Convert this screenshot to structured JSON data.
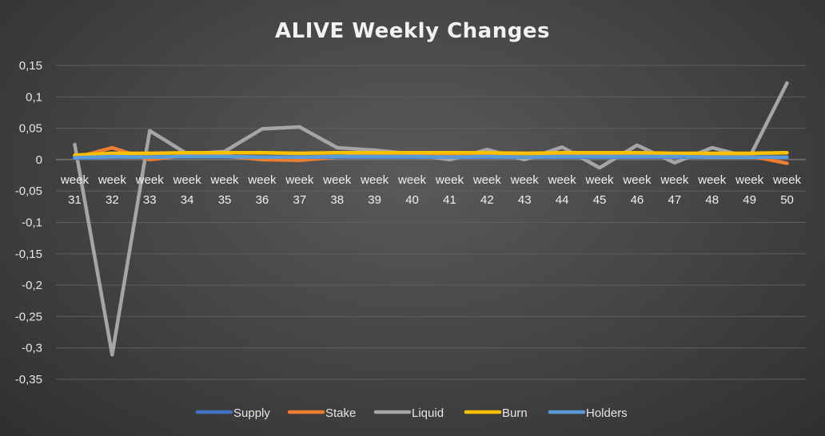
{
  "chart_data": {
    "type": "line",
    "title": "ALIVE Weekly Changes",
    "xlabel": "",
    "ylabel": "",
    "ylim": [
      -0.35,
      0.15
    ],
    "yticks": [
      "0,15",
      "0,1",
      "0,05",
      "0",
      "-0,05",
      "-0,1",
      "-0,15",
      "-0,2",
      "-0,25",
      "-0,3",
      "-0,35"
    ],
    "ytick_values": [
      0.15,
      0.1,
      0.05,
      0,
      -0.05,
      -0.1,
      -0.15,
      -0.2,
      -0.25,
      -0.3,
      -0.35
    ],
    "categories": [
      [
        "week",
        "31"
      ],
      [
        "week",
        "32"
      ],
      [
        "week",
        "33"
      ],
      [
        "week",
        "34"
      ],
      [
        "week",
        "35"
      ],
      [
        "week",
        "36"
      ],
      [
        "week",
        "37"
      ],
      [
        "week",
        "38"
      ],
      [
        "week",
        "39"
      ],
      [
        "week",
        "40"
      ],
      [
        "week",
        "41"
      ],
      [
        "week",
        "42"
      ],
      [
        "week",
        "43"
      ],
      [
        "week",
        "44"
      ],
      [
        "week",
        "45"
      ],
      [
        "week",
        "46"
      ],
      [
        "week",
        "47"
      ],
      [
        "week",
        "48"
      ],
      [
        "week",
        "49"
      ],
      [
        "week",
        "50"
      ]
    ],
    "grid": true,
    "legend_position": "bottom",
    "series": [
      {
        "name": "Supply",
        "color": "#4472c4",
        "values": [
          0.002,
          0.004,
          0.004,
          0.005,
          0.005,
          0.004,
          0.004,
          0.004,
          0.004,
          0.004,
          0.004,
          0.004,
          0.004,
          0.004,
          0.004,
          0.004,
          0.004,
          0.004,
          0.004,
          0.004
        ]
      },
      {
        "name": "Stake",
        "color": "#ed7d31",
        "values": [
          0.003,
          0.019,
          0.0,
          0.007,
          0.006,
          0.0,
          -0.001,
          0.004,
          0.008,
          0.007,
          0.008,
          0.008,
          0.006,
          0.006,
          0.008,
          0.007,
          0.006,
          0.005,
          0.006,
          -0.006
        ]
      },
      {
        "name": "Liquid",
        "color": "#a5a5a5",
        "values": [
          0.024,
          -0.311,
          0.046,
          0.009,
          0.013,
          0.049,
          0.052,
          0.019,
          0.015,
          0.009,
          0.0,
          0.016,
          0.0,
          0.02,
          -0.013,
          0.023,
          -0.005,
          0.019,
          0.004,
          0.122
        ]
      },
      {
        "name": "Burn",
        "color": "#ffc000",
        "values": [
          0.007,
          0.01,
          0.01,
          0.011,
          0.011,
          0.011,
          0.01,
          0.011,
          0.011,
          0.011,
          0.011,
          0.011,
          0.01,
          0.011,
          0.011,
          0.011,
          0.01,
          0.01,
          0.01,
          0.011
        ]
      },
      {
        "name": "Holders",
        "color": "#5b9bd5",
        "values": [
          0.003,
          0.005,
          0.004,
          0.005,
          0.005,
          0.004,
          0.004,
          0.005,
          0.005,
          0.005,
          0.004,
          0.005,
          0.004,
          0.005,
          0.005,
          0.005,
          0.005,
          0.004,
          0.004,
          0.004
        ]
      }
    ]
  }
}
